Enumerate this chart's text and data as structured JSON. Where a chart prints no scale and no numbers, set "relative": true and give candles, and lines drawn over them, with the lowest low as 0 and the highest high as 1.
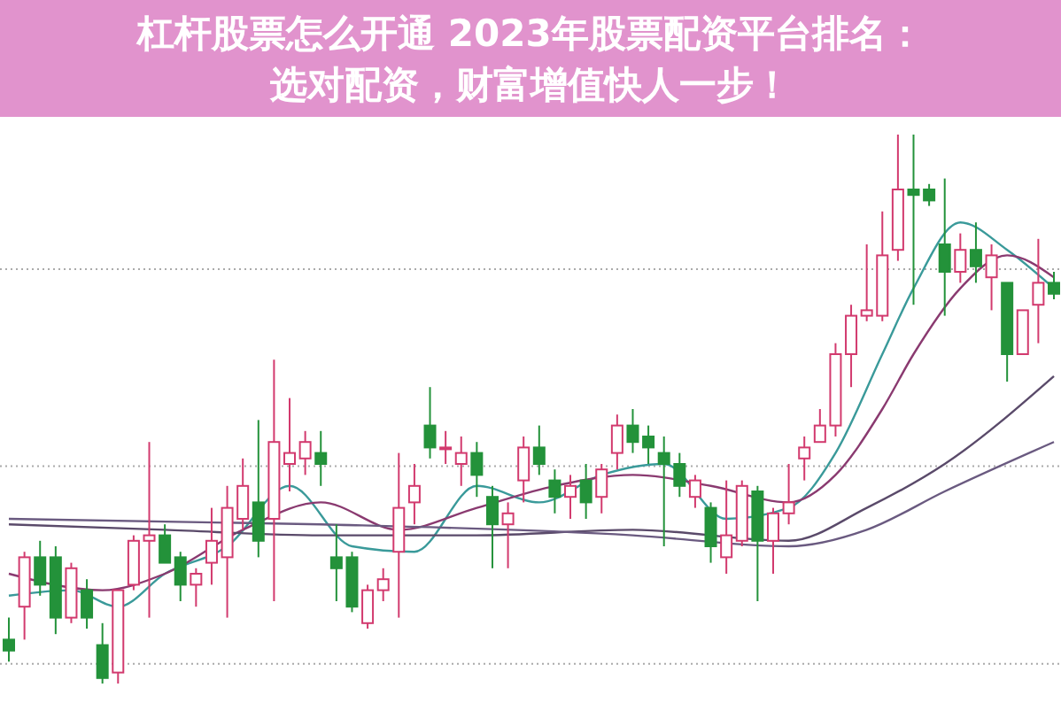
{
  "chart_data": {
    "type": "candlestick",
    "title": "杠杆股票怎么开通 2023年股票配资平台排名：选对配资，财富增值快人一步！",
    "relative": true,
    "grid": "y",
    "categories": [
      null,
      null,
      null,
      null,
      null,
      null,
      null,
      null,
      null,
      null,
      null,
      null,
      null,
      null,
      null,
      null,
      null,
      null,
      null,
      null,
      null,
      null,
      null,
      null,
      null,
      null,
      null,
      null,
      null,
      null,
      null,
      null,
      null,
      null,
      null,
      null,
      null,
      null,
      null,
      null,
      null,
      null,
      null,
      null,
      null,
      null,
      null,
      null,
      null,
      null,
      null,
      null,
      null,
      null,
      null,
      null,
      null,
      null,
      null,
      null,
      null,
      null,
      null,
      null,
      null,
      null,
      null,
      null
    ],
    "ohlc": [
      [
        0.08,
        0.12,
        0.04,
        0.06
      ],
      [
        0.14,
        0.24,
        0.08,
        0.23
      ],
      [
        0.23,
        0.26,
        0.16,
        0.18
      ],
      [
        0.23,
        0.25,
        0.09,
        0.12
      ],
      [
        0.12,
        0.22,
        0.11,
        0.21
      ],
      [
        0.17,
        0.19,
        0.1,
        0.12
      ],
      [
        0.07,
        0.11,
        0.0,
        0.01
      ],
      [
        0.02,
        0.17,
        0.0,
        0.17
      ],
      [
        0.18,
        0.27,
        0.17,
        0.26
      ],
      [
        0.26,
        0.44,
        0.12,
        0.27
      ],
      [
        0.27,
        0.29,
        0.22,
        0.22
      ],
      [
        0.23,
        0.24,
        0.15,
        0.18
      ],
      [
        0.18,
        0.21,
        0.14,
        0.2
      ],
      [
        0.22,
        0.32,
        0.18,
        0.26
      ],
      [
        0.23,
        0.36,
        0.12,
        0.32
      ],
      [
        0.3,
        0.41,
        0.28,
        0.36
      ],
      [
        0.33,
        0.48,
        0.23,
        0.26
      ],
      [
        0.3,
        0.59,
        0.15,
        0.44
      ],
      [
        0.4,
        0.52,
        0.35,
        0.42
      ],
      [
        0.41,
        0.46,
        0.38,
        0.44
      ],
      [
        0.42,
        0.46,
        0.36,
        0.4
      ],
      [
        0.23,
        0.29,
        0.15,
        0.21
      ],
      [
        0.23,
        0.24,
        0.13,
        0.14
      ],
      [
        0.11,
        0.18,
        0.1,
        0.17
      ],
      [
        0.17,
        0.21,
        0.15,
        0.19
      ],
      [
        0.24,
        0.42,
        0.12,
        0.32
      ],
      [
        0.33,
        0.4,
        0.29,
        0.36
      ],
      [
        0.47,
        0.54,
        0.41,
        0.43
      ],
      [
        0.43,
        0.46,
        0.4,
        0.43
      ],
      [
        0.4,
        0.45,
        0.36,
        0.42
      ],
      [
        0.42,
        0.44,
        0.34,
        0.38
      ],
      [
        0.34,
        0.36,
        0.21,
        0.29
      ],
      [
        0.29,
        0.33,
        0.21,
        0.31
      ],
      [
        0.37,
        0.45,
        0.33,
        0.43
      ],
      [
        0.43,
        0.47,
        0.38,
        0.4
      ],
      [
        0.37,
        0.39,
        0.31,
        0.34
      ],
      [
        0.34,
        0.38,
        0.3,
        0.36
      ],
      [
        0.37,
        0.4,
        0.3,
        0.33
      ],
      [
        0.34,
        0.4,
        0.31,
        0.39
      ],
      [
        0.42,
        0.49,
        0.39,
        0.47
      ],
      [
        0.47,
        0.5,
        0.42,
        0.44
      ],
      [
        0.45,
        0.47,
        0.4,
        0.43
      ],
      [
        0.42,
        0.45,
        0.25,
        0.4
      ],
      [
        0.4,
        0.42,
        0.34,
        0.36
      ],
      [
        0.34,
        0.38,
        0.32,
        0.37
      ],
      [
        0.32,
        0.33,
        0.22,
        0.25
      ],
      [
        0.23,
        0.37,
        0.2,
        0.27
      ],
      [
        0.26,
        0.37,
        0.25,
        0.36
      ],
      [
        0.35,
        0.36,
        0.15,
        0.26
      ],
      [
        0.26,
        0.32,
        0.2,
        0.31
      ],
      [
        0.31,
        0.4,
        0.29,
        0.33
      ],
      [
        0.41,
        0.45,
        0.37,
        0.43
      ],
      [
        0.44,
        0.5,
        0.44,
        0.47
      ],
      [
        0.47,
        0.62,
        0.45,
        0.6
      ],
      [
        0.6,
        0.69,
        0.54,
        0.67
      ],
      [
        0.67,
        0.8,
        0.66,
        0.68
      ],
      [
        0.67,
        0.86,
        0.66,
        0.78
      ],
      [
        0.79,
        1.0,
        0.77,
        0.9
      ],
      [
        0.9,
        1.0,
        0.69,
        0.89
      ],
      [
        0.9,
        0.91,
        0.87,
        0.88
      ],
      [
        0.8,
        0.92,
        0.67,
        0.75
      ],
      [
        0.75,
        0.82,
        0.73,
        0.79
      ],
      [
        0.79,
        0.84,
        0.73,
        0.76
      ],
      [
        0.74,
        0.8,
        0.68,
        0.78
      ],
      [
        0.73,
        0.73,
        0.55,
        0.6
      ],
      [
        0.6,
        0.68,
        0.6,
        0.68
      ],
      [
        0.69,
        0.81,
        0.62,
        0.73
      ],
      [
        0.73,
        0.75,
        0.7,
        0.71
      ]
    ],
    "series": [
      {
        "type": "line",
        "color": "#3a9a9a",
        "values": [
          0.16,
          null,
          null,
          null,
          0.17,
          null,
          null,
          0.14,
          null,
          null,
          0.2,
          null,
          null,
          null,
          0.25,
          null,
          null,
          null,
          0.36,
          null,
          null,
          null,
          0.25,
          null,
          null,
          null,
          0.24,
          null,
          null,
          null,
          0.36,
          null,
          null,
          null,
          0.33,
          null,
          null,
          null,
          0.38,
          null,
          null,
          null,
          0.4,
          null,
          null,
          null,
          0.3,
          null,
          null,
          null,
          0.32,
          null,
          null,
          0.42,
          null,
          null,
          0.6,
          null,
          0.72,
          null,
          null,
          0.84,
          null,
          null,
          0.79,
          null,
          null,
          0.72
        ]
      },
      {
        "type": "line",
        "color": "#8a3a70",
        "values": [
          0.2,
          null,
          null,
          null,
          null,
          null,
          0.17,
          null,
          null,
          null,
          0.2,
          null,
          null,
          null,
          null,
          0.28,
          null,
          null,
          null,
          null,
          0.33,
          null,
          null,
          null,
          null,
          0.28,
          null,
          null,
          null,
          null,
          0.32,
          null,
          null,
          null,
          null,
          0.36,
          null,
          null,
          null,
          null,
          0.38,
          null,
          null,
          null,
          null,
          0.36,
          null,
          null,
          null,
          null,
          0.33,
          null,
          null,
          0.38,
          null,
          null,
          0.5,
          null,
          0.6,
          null,
          null,
          0.72,
          null,
          null,
          0.78,
          null,
          null,
          0.74
        ]
      },
      {
        "type": "line",
        "color": "#5a4a6a",
        "values": [
          0.29,
          null,
          null,
          null,
          null,
          null,
          null,
          null,
          null,
          null,
          0.28,
          null,
          null,
          null,
          null,
          null,
          null,
          null,
          null,
          null,
          0.27,
          null,
          null,
          null,
          null,
          null,
          null,
          null,
          null,
          null,
          0.27,
          null,
          null,
          null,
          null,
          null,
          null,
          null,
          null,
          null,
          0.28,
          null,
          null,
          null,
          null,
          null,
          null,
          null,
          null,
          null,
          0.26,
          null,
          null,
          null,
          null,
          0.32,
          null,
          null,
          null,
          null,
          0.4,
          null,
          null,
          null,
          null,
          null,
          null,
          0.56
        ]
      },
      {
        "type": "line",
        "color": "#6a5a80",
        "values": [
          0.3,
          null,
          null,
          null,
          null,
          null,
          null,
          null,
          null,
          null,
          null,
          null,
          null,
          null,
          null,
          null,
          null,
          null,
          null,
          null,
          0.29,
          null,
          null,
          null,
          null,
          null,
          null,
          null,
          null,
          null,
          null,
          null,
          null,
          null,
          null,
          null,
          null,
          null,
          null,
          null,
          0.27,
          null,
          null,
          null,
          null,
          null,
          null,
          null,
          null,
          null,
          0.25,
          null,
          null,
          null,
          null,
          0.28,
          null,
          null,
          null,
          null,
          0.35,
          null,
          null,
          null,
          null,
          null,
          null,
          0.44
        ]
      }
    ]
  }
}
